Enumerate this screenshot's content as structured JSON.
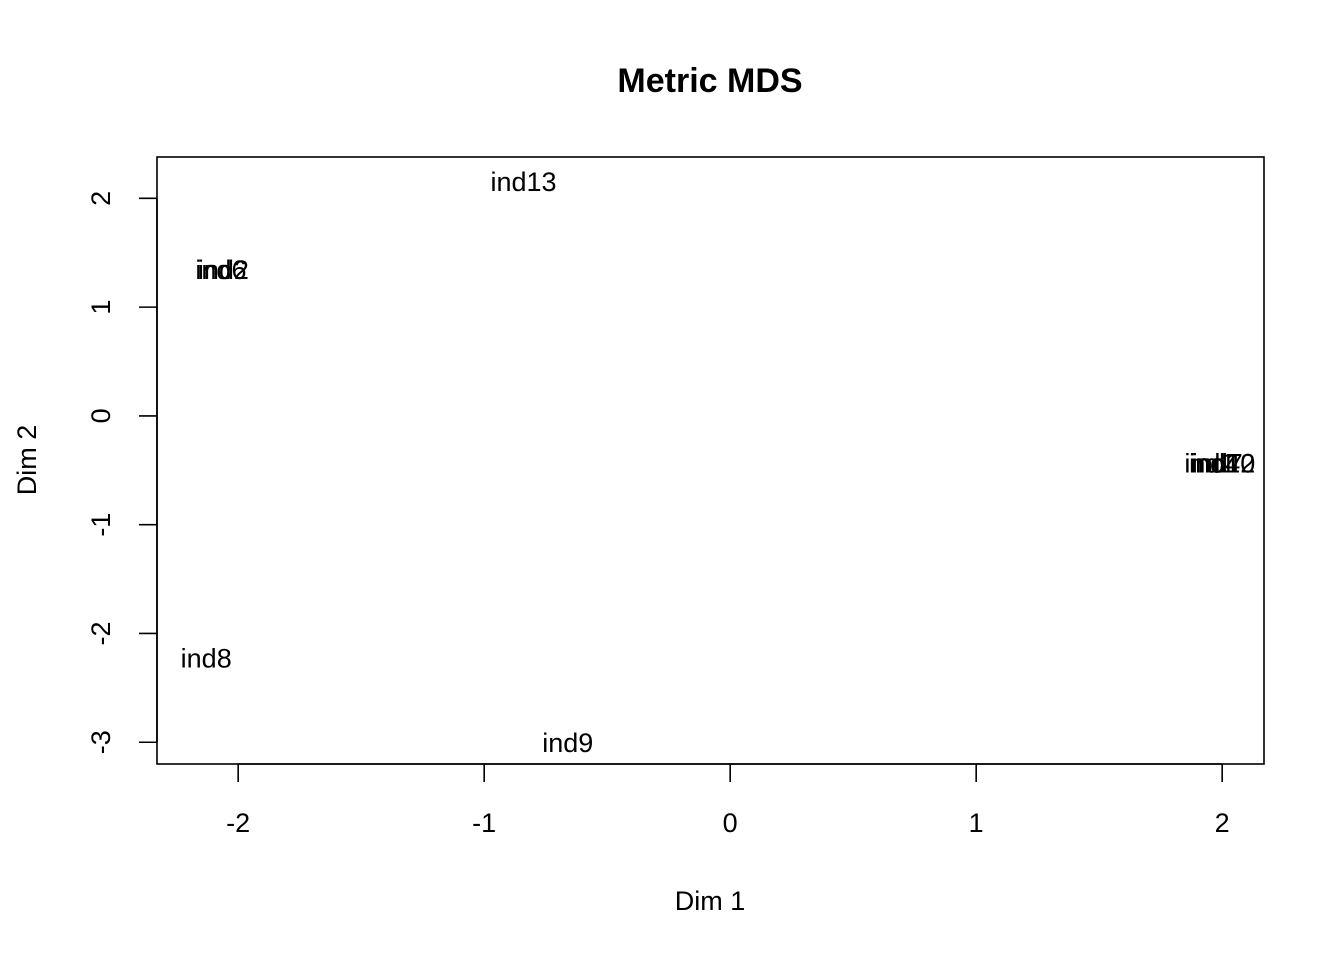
{
  "chart_data": {
    "type": "scatter",
    "title": "Metric MDS",
    "xlabel": "Dim 1",
    "ylabel": "Dim 2",
    "xlim": [
      -2.33,
      2.17
    ],
    "ylim": [
      -3.2,
      2.38
    ],
    "xticks": [
      -2,
      -1,
      0,
      1,
      2
    ],
    "yticks": [
      -3,
      -2,
      -1,
      0,
      1,
      2
    ],
    "marker": "text-labels",
    "points": [
      {
        "label": "ind13",
        "x": -0.84,
        "y": 2.16
      },
      {
        "label": "ind2",
        "x": -2.06,
        "y": 1.35
      },
      {
        "label": "ind6",
        "x": -2.07,
        "y": 1.35
      },
      {
        "label": "ind8",
        "x": -2.13,
        "y": -2.22
      },
      {
        "label": "ind9",
        "x": -0.66,
        "y": -3.0
      },
      {
        "label": "ind1",
        "x": 1.95,
        "y": -0.43
      },
      {
        "label": "ind4",
        "x": 1.97,
        "y": -0.43
      },
      {
        "label": "ind7",
        "x": 1.98,
        "y": -0.43
      },
      {
        "label": "ind10",
        "x": 2.0,
        "y": -0.43
      },
      {
        "label": "ind12",
        "x": 2.0,
        "y": -0.43
      }
    ]
  }
}
